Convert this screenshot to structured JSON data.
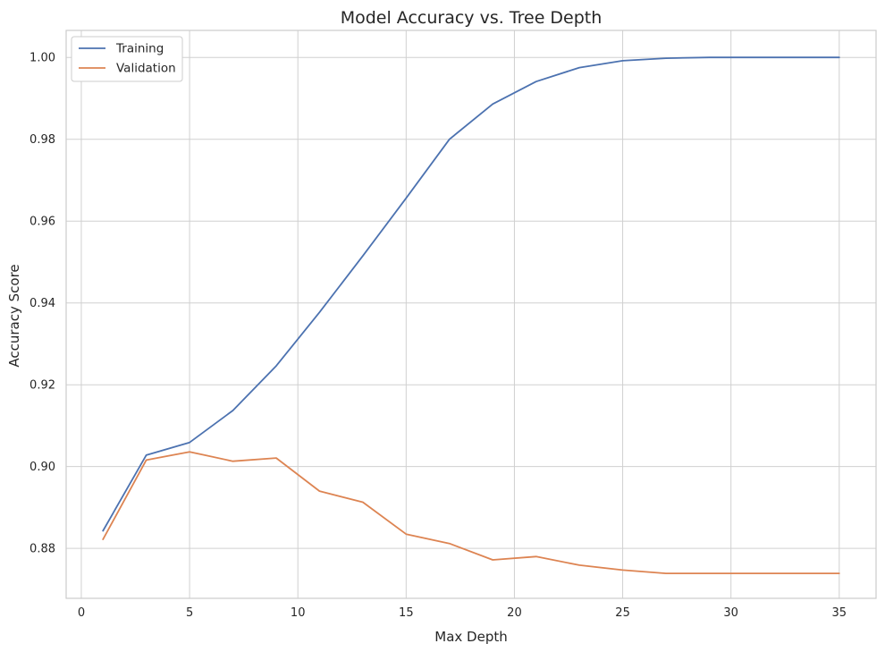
{
  "chart_data": {
    "type": "line",
    "title": "Model Accuracy vs. Tree Depth",
    "xlabel": "Max Depth",
    "ylabel": "Accuracy Score",
    "xlim": [
      -0.7,
      36.7
    ],
    "ylim": [
      0.8678,
      1.0066
    ],
    "xticks": [
      0,
      5,
      10,
      15,
      20,
      25,
      30,
      35
    ],
    "yticks": [
      0.88,
      0.9,
      0.92,
      0.94,
      0.96,
      0.98,
      1.0
    ],
    "ytick_labels": [
      "0.88",
      "0.90",
      "0.92",
      "0.94",
      "0.96",
      "0.98",
      "1.00"
    ],
    "grid": true,
    "legend_position": "top-left",
    "x": [
      1,
      3,
      5,
      7,
      9,
      11,
      13,
      15,
      17,
      19,
      21,
      23,
      25,
      27,
      29,
      31,
      33,
      35
    ],
    "series": [
      {
        "name": "Training",
        "color": "#4c72b0",
        "values": [
          0.8843,
          0.9028,
          0.9059,
          0.9137,
          0.9246,
          0.9377,
          0.9515,
          0.9656,
          0.98,
          0.9886,
          0.9941,
          0.9975,
          0.9992,
          0.9998,
          1.0,
          1.0,
          1.0,
          1.0
        ]
      },
      {
        "name": "Validation",
        "color": "#dd8452",
        "values": [
          0.8822,
          0.9016,
          0.9036,
          0.9013,
          0.9021,
          0.894,
          0.8913,
          0.8835,
          0.8812,
          0.8772,
          0.878,
          0.8759,
          0.8747,
          0.8739,
          0.8739,
          0.8739,
          0.8739,
          0.8739
        ]
      }
    ]
  }
}
